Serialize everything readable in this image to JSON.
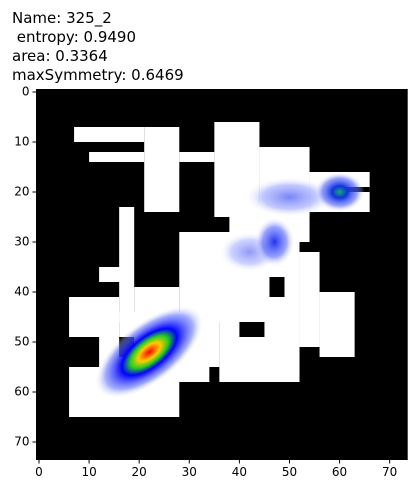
{
  "chart_data": {
    "type": "image",
    "title": [
      "Name: 325_2",
      " entropy: 0.9490",
      "area: 0.3364",
      "maxSymmetry: 0.6469"
    ],
    "xlim": [
      -0.5,
      73.5
    ],
    "ylim": [
      73.5,
      -0.5
    ],
    "xticks": [
      0,
      10,
      20,
      30,
      40,
      50,
      60,
      70
    ],
    "yticks": [
      0,
      10,
      20,
      30,
      40,
      50,
      60,
      70
    ]
  }
}
